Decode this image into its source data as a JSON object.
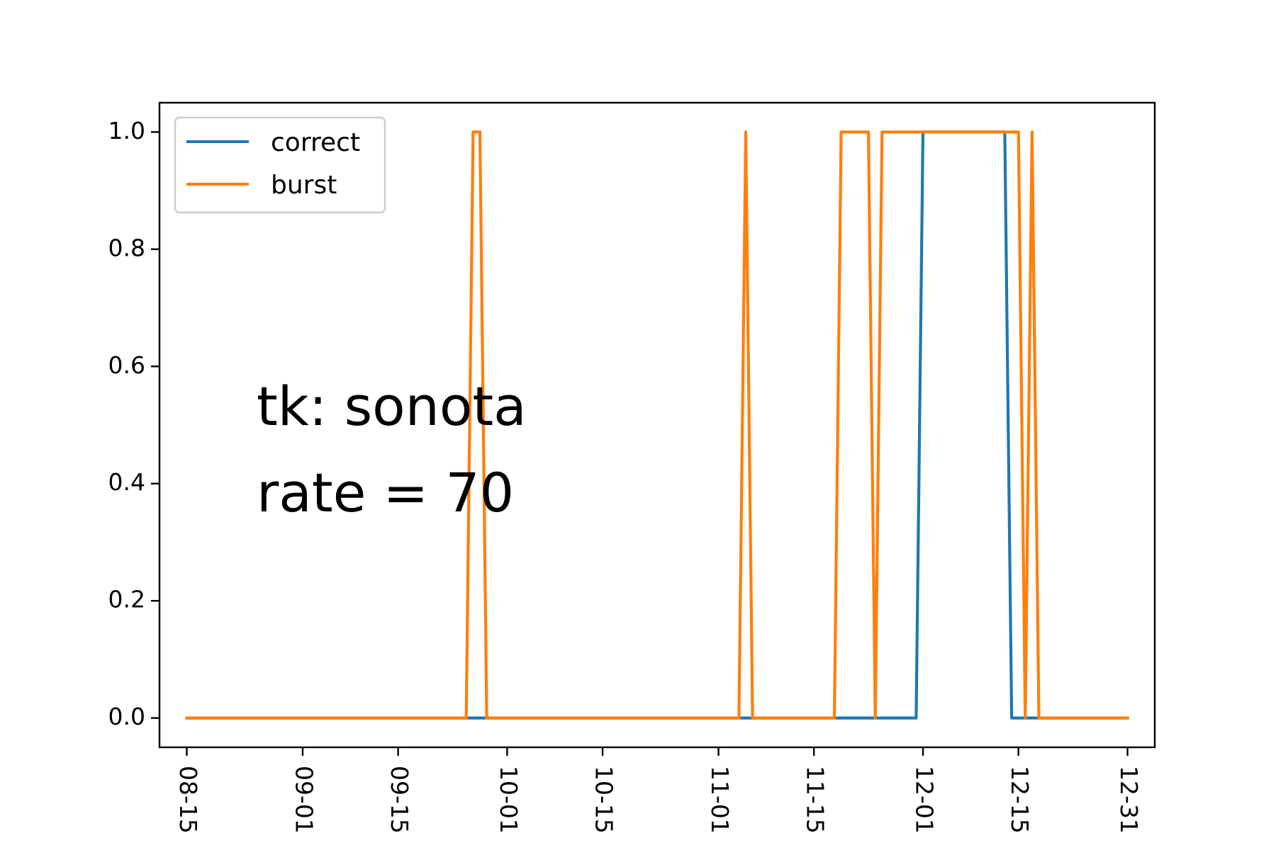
{
  "chart_data": {
    "type": "line",
    "title": "",
    "xlabel": "",
    "ylabel": "",
    "x_axis_type": "date",
    "year": "2020",
    "xlim": [
      "2020-08-11",
      "2021-01-04"
    ],
    "ylim": [
      -0.05,
      1.05
    ],
    "grid": false,
    "legend": {
      "position": "top-left",
      "entries": [
        "correct",
        "burst"
      ]
    },
    "x_ticks": [
      {
        "date": "2020-08-15",
        "label": "08-15"
      },
      {
        "date": "2020-09-01",
        "label": "09-01"
      },
      {
        "date": "2020-09-15",
        "label": "09-15"
      },
      {
        "date": "2020-10-01",
        "label": "10-01"
      },
      {
        "date": "2020-10-15",
        "label": "10-15"
      },
      {
        "date": "2020-11-01",
        "label": "11-01"
      },
      {
        "date": "2020-11-15",
        "label": "11-15"
      },
      {
        "date": "2020-12-01",
        "label": "12-01"
      },
      {
        "date": "2020-12-15",
        "label": "12-15"
      },
      {
        "date": "2020-12-31",
        "label": "12-31"
      }
    ],
    "y_ticks": [
      {
        "value": 0.0,
        "label": "0.0"
      },
      {
        "value": 0.2,
        "label": "0.2"
      },
      {
        "value": 0.4,
        "label": "0.4"
      },
      {
        "value": 0.6,
        "label": "0.6"
      },
      {
        "value": 0.8,
        "label": "0.8"
      },
      {
        "value": 1.0,
        "label": "1.0"
      }
    ],
    "series": [
      {
        "name": "correct",
        "color": "#1f77b4",
        "points": [
          [
            "2020-08-15",
            0
          ],
          [
            "2020-11-30",
            0
          ],
          [
            "2020-12-01",
            1
          ],
          [
            "2020-12-13",
            1
          ],
          [
            "2020-12-14",
            0
          ],
          [
            "2020-12-31",
            0
          ]
        ]
      },
      {
        "name": "burst",
        "color": "#ff7f0e",
        "points": [
          [
            "2020-08-15",
            0
          ],
          [
            "2020-09-25",
            0
          ],
          [
            "2020-09-26",
            1
          ],
          [
            "2020-09-27",
            1
          ],
          [
            "2020-09-28",
            0
          ],
          [
            "2020-11-04",
            0
          ],
          [
            "2020-11-05",
            1
          ],
          [
            "2020-11-06",
            0
          ],
          [
            "2020-11-18",
            0
          ],
          [
            "2020-11-19",
            1
          ],
          [
            "2020-11-23",
            1
          ],
          [
            "2020-11-24",
            0
          ],
          [
            "2020-11-25",
            1
          ],
          [
            "2020-12-15",
            1
          ],
          [
            "2020-12-16",
            0
          ],
          [
            "2020-12-17",
            1
          ],
          [
            "2020-12-18",
            0
          ],
          [
            "2020-12-31",
            0
          ]
        ]
      }
    ],
    "annotations": [
      "tk: sonota",
      "rate = 70"
    ]
  }
}
